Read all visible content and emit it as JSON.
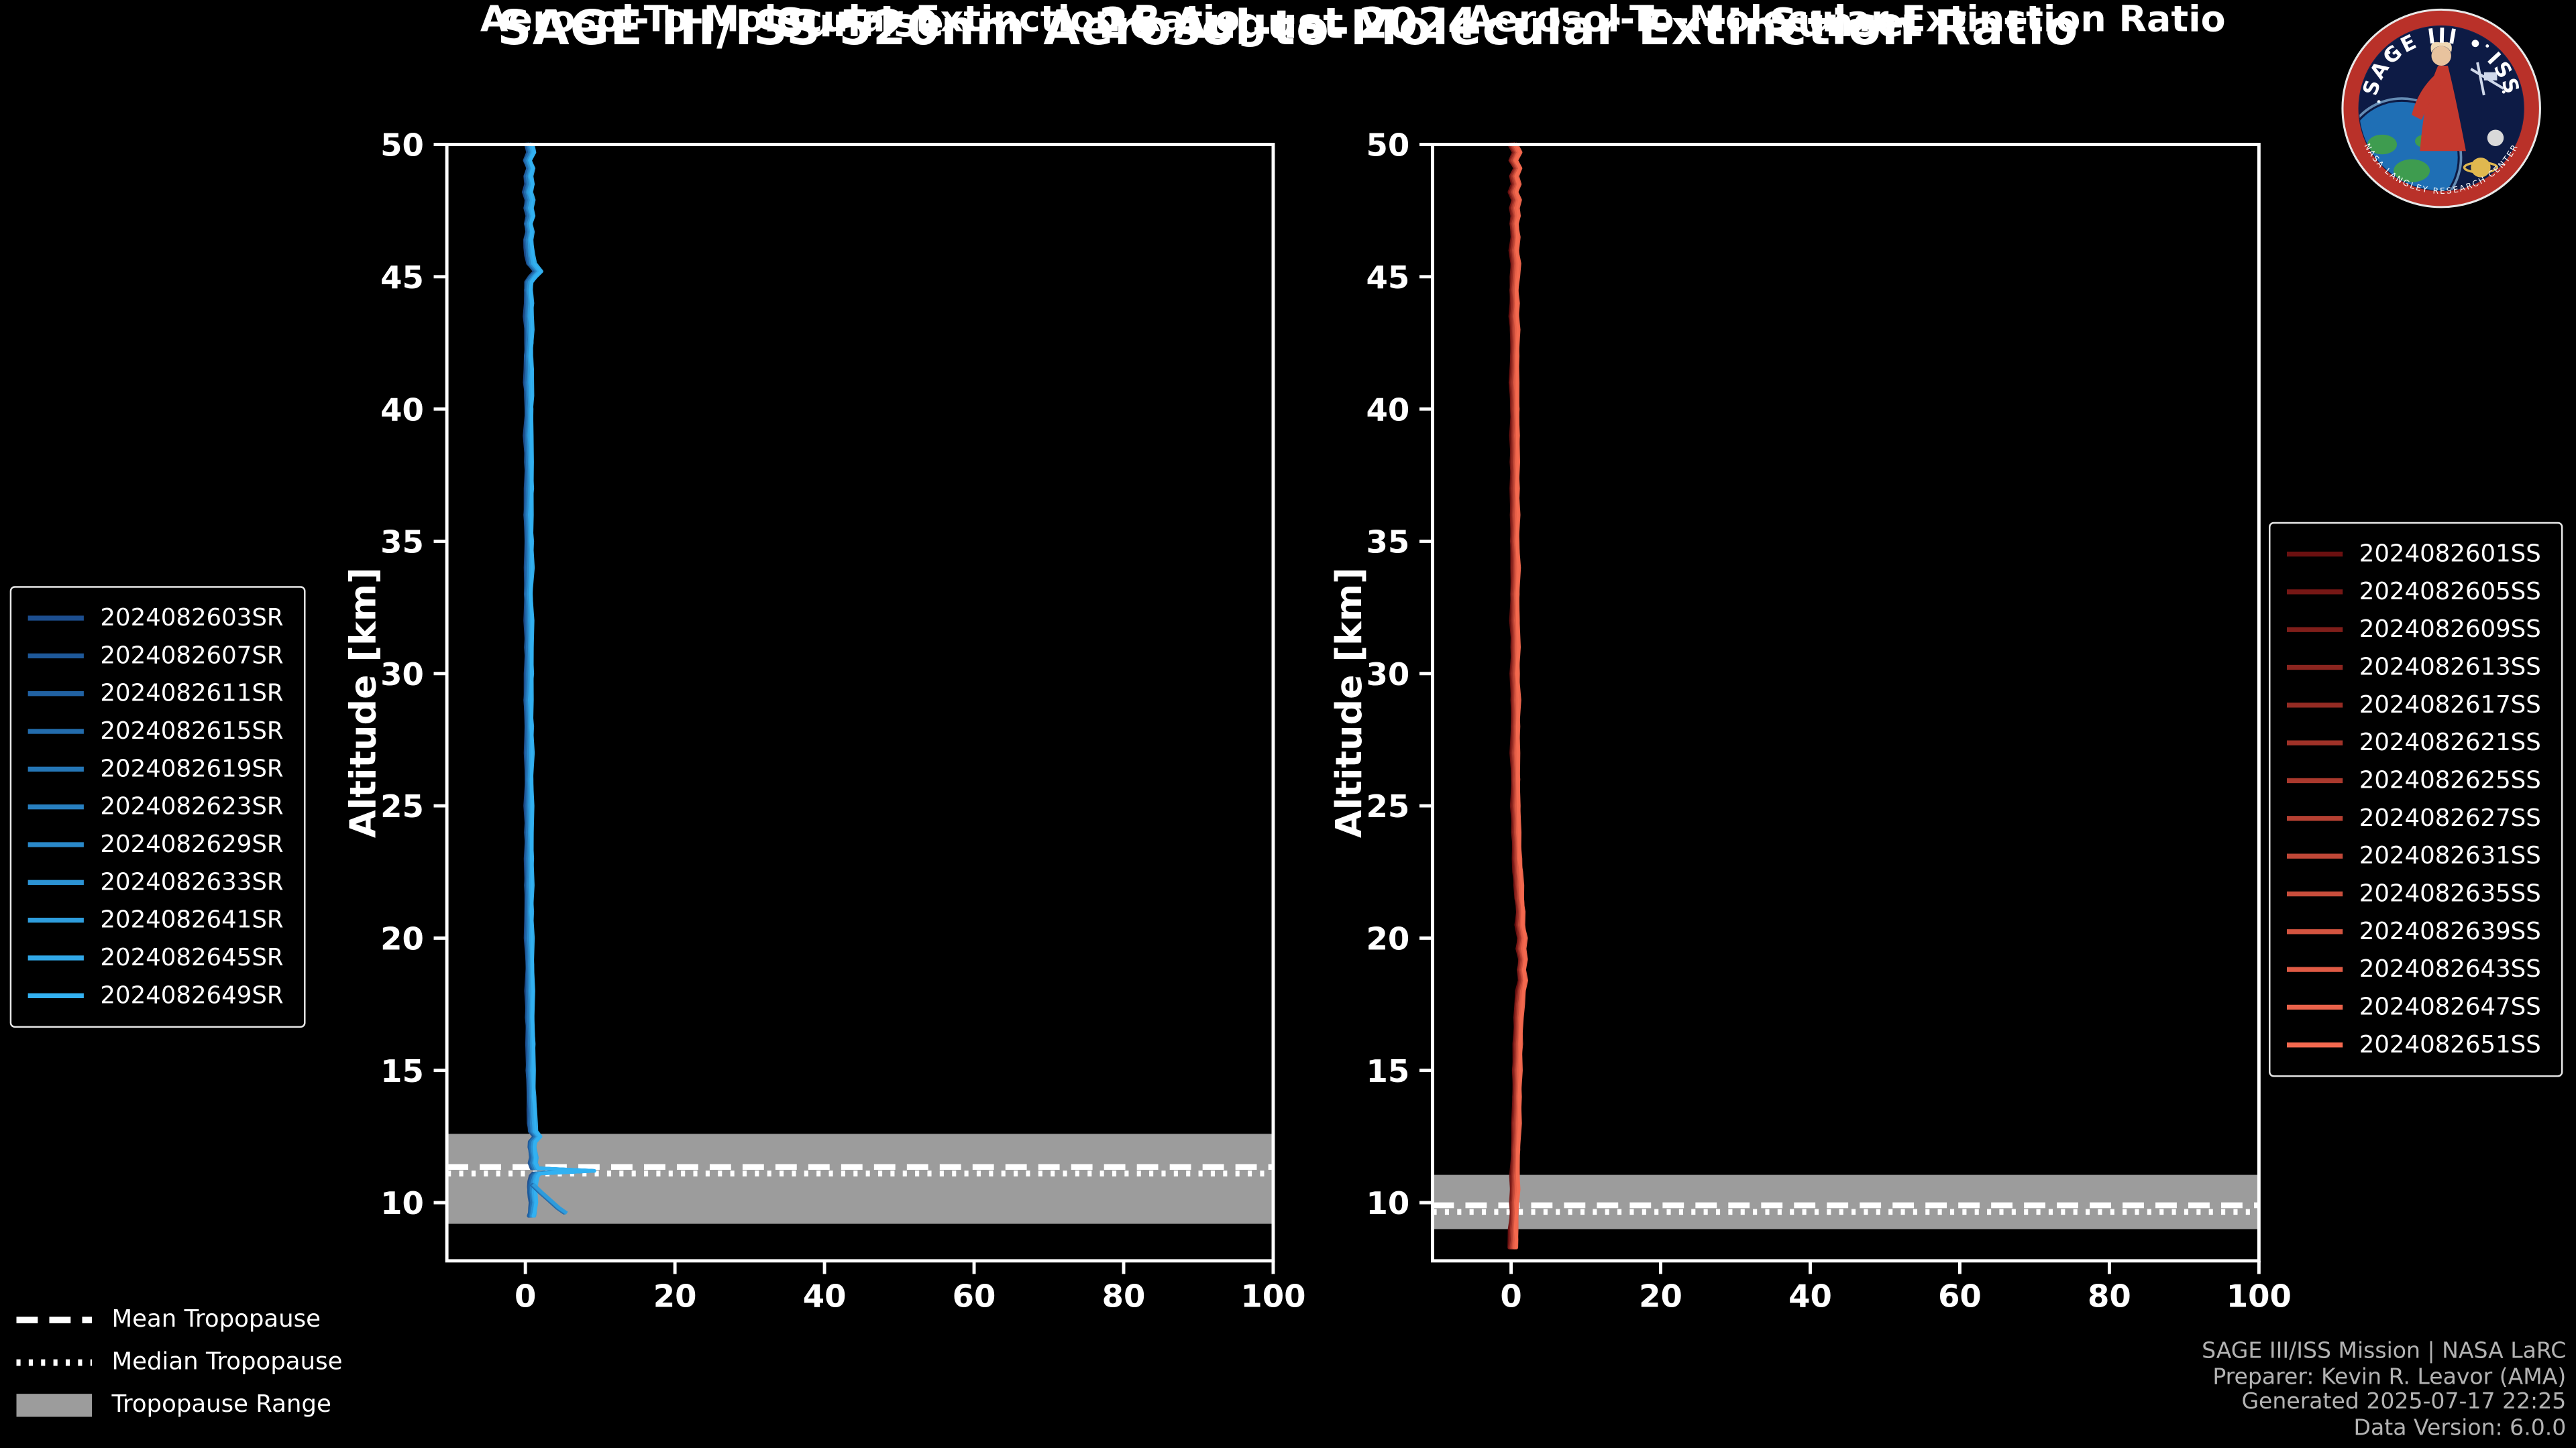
{
  "header": {
    "title": "SAGE III/ISS 520nm Aerosol-to-Molecular Extinction Ratio",
    "date": "26 August 2024"
  },
  "logo": {
    "title": "SAGE III • ISS",
    "ring_text": "NASA LANGLEY RESEARCH CENTER"
  },
  "tropopause_legend": {
    "mean": "Mean Tropopause",
    "median": "Median Tropopause",
    "range": "Tropopause Range"
  },
  "footer": {
    "lines": [
      "SAGE III/ISS Mission | NASA LaRC",
      "Preparer: Kevin R. Leavor (AMA)",
      "Generated 2025-07-17 22:25",
      "Data Version: 6.0.0"
    ]
  },
  "chart_data": [
    {
      "type": "line",
      "title": "Sunrise",
      "xlabel": "Aerosol-To-Molecular Extinction Ratio",
      "ylabel": "Altitude [km]",
      "xlim": [
        -10.5,
        100
      ],
      "ylim": [
        7.8,
        50
      ],
      "xticks": [
        0,
        20,
        40,
        60,
        80,
        100
      ],
      "yticks": [
        10,
        15,
        20,
        25,
        30,
        35,
        40,
        45,
        50
      ],
      "legend_position": "outside-left",
      "grid": false,
      "color_ramp": [
        "#1c4e8f",
        "#33b1f1"
      ],
      "series_names": [
        "2024082603SR",
        "2024082607SR",
        "2024082611SR",
        "2024082615SR",
        "2024082619SR",
        "2024082623SR",
        "2024082629SR",
        "2024082633SR",
        "2024082641SR",
        "2024082645SR",
        "2024082649SR"
      ],
      "tropopause": {
        "mean": 11.35,
        "median": 11.1,
        "range": [
          9.2,
          12.6
        ]
      },
      "profile": {
        "altitude": [
          50.0,
          49.7,
          49.4,
          49.1,
          48.8,
          48.5,
          48.2,
          47.9,
          47.6,
          47.3,
          47.0,
          46.7,
          46.4,
          46.1,
          45.8,
          45.5,
          45.2,
          45.0,
          44.8,
          44.5,
          44.0,
          43.5,
          43.0,
          42.5,
          42.0,
          41.5,
          41.0,
          40.5,
          40.0,
          39.0,
          38.0,
          37.0,
          36.0,
          35.0,
          34.0,
          33.0,
          32.0,
          31.0,
          30.0,
          29.0,
          28.0,
          27.0,
          26.0,
          25.0,
          24.0,
          23.0,
          22.0,
          21.0,
          20.0,
          19.0,
          18.0,
          17.0,
          16.0,
          15.0,
          14.0,
          13.5,
          13.0,
          12.7,
          12.5,
          12.3,
          12.1,
          11.9,
          11.7,
          11.5,
          11.3,
          11.2,
          11.1,
          11.0,
          10.8,
          10.6,
          10.4,
          10.2,
          10.0,
          9.8,
          9.6,
          9.5
        ],
        "ratio": [
          0.5,
          0.8,
          0.3,
          0.7,
          0.4,
          0.6,
          0.3,
          0.6,
          0.4,
          0.7,
          0.4,
          0.6,
          0.4,
          0.5,
          0.6,
          0.8,
          1.7,
          1.0,
          0.5,
          0.4,
          0.5,
          0.4,
          0.5,
          0.5,
          0.4,
          0.5,
          0.4,
          0.5,
          0.5,
          0.4,
          0.5,
          0.5,
          0.4,
          0.5,
          0.5,
          0.4,
          0.5,
          0.5,
          0.5,
          0.4,
          0.5,
          0.5,
          0.5,
          0.5,
          0.5,
          0.5,
          0.5,
          0.5,
          0.5,
          0.6,
          0.6,
          0.6,
          0.7,
          0.7,
          0.8,
          0.9,
          0.9,
          1.0,
          1.6,
          1.0,
          0.9,
          1.0,
          1.1,
          1.0,
          1.3,
          8.8,
          1.5,
          1.2,
          1.0,
          0.9,
          0.9,
          1.0,
          1.1,
          1.0,
          0.9,
          0.8
        ]
      },
      "branch": {
        "altitude": [
          10.7,
          10.4,
          10.1,
          9.8,
          9.6
        ],
        "ratio": [
          0.9,
          2.0,
          3.2,
          4.4,
          5.4
        ]
      }
    },
    {
      "type": "line",
      "title": "Sunset",
      "xlabel": "Aerosol-To-Molecular Extinction Ratio",
      "ylabel": "Altitude [km]",
      "xlim": [
        -10.5,
        100
      ],
      "ylim": [
        7.8,
        50
      ],
      "xticks": [
        0,
        20,
        40,
        60,
        80,
        100
      ],
      "yticks": [
        10,
        15,
        20,
        25,
        30,
        35,
        40,
        45,
        50
      ],
      "legend_position": "outside-right",
      "grid": false,
      "color_ramp": [
        "#6b1010",
        "#f4694f"
      ],
      "series_names": [
        "2024082601SS",
        "2024082605SS",
        "2024082609SS",
        "2024082613SS",
        "2024082617SS",
        "2024082621SS",
        "2024082625SS",
        "2024082627SS",
        "2024082631SS",
        "2024082635SS",
        "2024082639SS",
        "2024082643SS",
        "2024082647SS",
        "2024082651SS"
      ],
      "tropopause": {
        "mean": 9.9,
        "median": 9.65,
        "range": [
          9.0,
          11.05
        ]
      },
      "profile": {
        "altitude": [
          50.0,
          49.7,
          49.4,
          49.1,
          48.8,
          48.5,
          48.2,
          47.9,
          47.6,
          47.3,
          47.0,
          46.5,
          46.0,
          45.5,
          45.0,
          44.5,
          44.0,
          43.5,
          43.0,
          42.0,
          41.0,
          40.0,
          39.0,
          38.0,
          37.0,
          36.0,
          35.0,
          34.0,
          33.0,
          32.0,
          31.0,
          30.0,
          29.0,
          28.0,
          27.0,
          26.0,
          25.0,
          24.0,
          23.0,
          22.5,
          22.0,
          21.5,
          21.0,
          20.5,
          20.0,
          19.6,
          19.2,
          18.8,
          18.4,
          18.0,
          17.5,
          17.0,
          16.0,
          15.0,
          14.0,
          13.0,
          12.0,
          11.0,
          10.5,
          10.0,
          9.5,
          9.0,
          8.6,
          8.3
        ],
        "ratio": [
          0.2,
          0.8,
          0.3,
          0.9,
          0.4,
          0.7,
          0.3,
          0.7,
          0.4,
          0.6,
          0.4,
          0.6,
          0.4,
          0.6,
          0.5,
          0.4,
          0.5,
          0.4,
          0.5,
          0.5,
          0.4,
          0.5,
          0.5,
          0.5,
          0.5,
          0.5,
          0.5,
          0.6,
          0.5,
          0.5,
          0.6,
          0.5,
          0.6,
          0.6,
          0.5,
          0.6,
          0.6,
          0.7,
          0.8,
          0.9,
          1.0,
          1.1,
          1.3,
          1.2,
          1.5,
          1.3,
          1.6,
          1.4,
          1.6,
          1.3,
          1.1,
          1.0,
          0.9,
          0.8,
          0.8,
          0.7,
          0.6,
          0.5,
          0.5,
          0.4,
          0.4,
          0.3,
          0.3,
          0.2
        ]
      }
    }
  ]
}
